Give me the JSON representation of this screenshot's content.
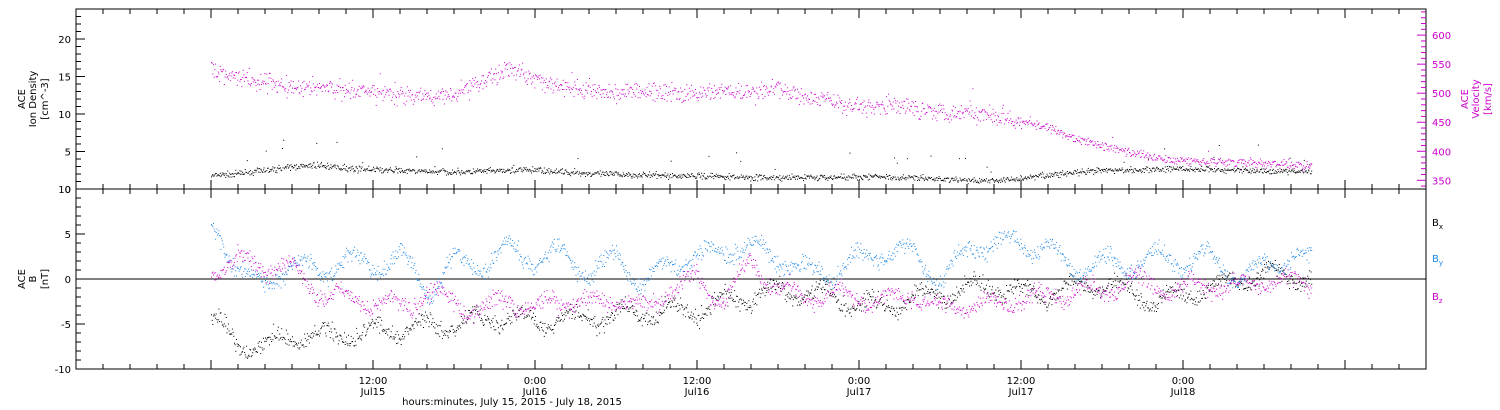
{
  "chart_data": [
    {
      "type": "scatter",
      "panel": "plasma",
      "left_axis_label": [
        "ACE",
        "Ion Density",
        "[cm^-3]"
      ],
      "right_axis_label": [
        "ACE",
        "Velocity",
        "[km/s]"
      ],
      "left_ylim": [
        0,
        24
      ],
      "right_ylim": [
        335,
        645
      ],
      "left_yticks": [
        0,
        5,
        10,
        15,
        20
      ],
      "right_yticks": [
        350,
        400,
        450,
        500,
        550,
        600
      ],
      "colors": {
        "density": "#000000",
        "velocity": "#cc00cc"
      },
      "series": [
        {
          "name": "Ion Density",
          "axis": "left",
          "x_hours": [
            0,
            2,
            4,
            6,
            8,
            10,
            12,
            14,
            16,
            18,
            20,
            22,
            24,
            26,
            28,
            30,
            32,
            34,
            36,
            38,
            40,
            42,
            44,
            46,
            48,
            50,
            52,
            54,
            56,
            58,
            60,
            62,
            64,
            66,
            68,
            70,
            72,
            74,
            76,
            78,
            80,
            81.5
          ],
          "values": [
            1.8,
            2.1,
            2.5,
            3.0,
            3.2,
            2.8,
            2.6,
            2.5,
            2.4,
            2.3,
            2.4,
            2.5,
            2.6,
            2.3,
            2.1,
            2.0,
            1.9,
            1.8,
            1.8,
            1.7,
            1.6,
            1.5,
            1.6,
            1.6,
            1.7,
            1.7,
            1.5,
            1.4,
            1.2,
            1.1,
            1.5,
            1.9,
            2.2,
            2.5,
            2.6,
            2.7,
            2.7,
            2.6,
            2.6,
            2.5,
            2.4,
            2.3
          ]
        },
        {
          "name": "Velocity",
          "axis": "right",
          "x_hours": [
            0,
            2,
            4,
            6,
            8,
            10,
            12,
            14,
            16,
            18,
            20,
            22,
            24,
            26,
            28,
            30,
            32,
            34,
            36,
            38,
            40,
            42,
            44,
            46,
            48,
            50,
            52,
            54,
            56,
            58,
            60,
            62,
            64,
            66,
            68,
            70,
            72,
            74,
            76,
            78,
            80,
            81.5
          ],
          "values": [
            540,
            530,
            520,
            510,
            512,
            505,
            500,
            498,
            495,
            500,
            520,
            545,
            525,
            510,
            505,
            500,
            505,
            500,
            498,
            505,
            500,
            510,
            495,
            485,
            478,
            480,
            475,
            470,
            468,
            465,
            455,
            440,
            422,
            410,
            398,
            390,
            385,
            383,
            381,
            380,
            378,
            375
          ]
        }
      ]
    },
    {
      "type": "scatter",
      "panel": "magnetic-field",
      "left_axis_label": [
        "ACE",
        "B",
        "[nT]"
      ],
      "ylim": [
        -10,
        10
      ],
      "yticks": [
        -10,
        -5,
        0,
        5,
        10
      ],
      "zero_line": true,
      "legend": [
        "Bx",
        "By",
        "Bz"
      ],
      "legend_position": "right",
      "colors": {
        "Bx": "#000000",
        "By": "#1e88e5",
        "Bz": "#cc00cc"
      },
      "series": [
        {
          "name": "Bx",
          "x_hours": [
            0,
            2,
            4,
            6,
            8,
            10,
            12,
            14,
            16,
            18,
            20,
            22,
            24,
            26,
            28,
            30,
            32,
            34,
            36,
            38,
            40,
            42,
            44,
            46,
            48,
            50,
            52,
            54,
            56,
            58,
            60,
            62,
            64,
            66,
            68,
            70,
            72,
            74,
            76,
            78,
            80,
            81.5
          ],
          "values": [
            -4,
            -7.5,
            -7.2,
            -6.5,
            -6.3,
            -6.0,
            -5.8,
            -5.5,
            -5.3,
            -5.0,
            -4.5,
            -4.2,
            -4.8,
            -4.5,
            -4.2,
            -4.0,
            -3.8,
            -3.5,
            -3.5,
            -2.5,
            -2.0,
            -1.2,
            -1.5,
            -2.0,
            -2.8,
            -3.0,
            -2.0,
            -1.8,
            -1.0,
            -0.5,
            -1.5,
            -1.5,
            -1.0,
            -0.5,
            -1.5,
            -2.5,
            -1.5,
            -1.0,
            0.0,
            0.5,
            0.5,
            0.0
          ]
        },
        {
          "name": "By",
          "x_hours": [
            0,
            2,
            4,
            6,
            8,
            10,
            12,
            14,
            16,
            18,
            20,
            22,
            24,
            26,
            28,
            30,
            32,
            34,
            36,
            38,
            40,
            42,
            44,
            46,
            48,
            50,
            52,
            54,
            56,
            58,
            60,
            62,
            64,
            66,
            68,
            70,
            72,
            74,
            76,
            78,
            80,
            81.5
          ],
          "values": [
            5.5,
            1.5,
            -1.0,
            2.0,
            0.5,
            2.5,
            1.0,
            3.0,
            -1.5,
            2.0,
            1.5,
            3.5,
            2.0,
            3.0,
            0.5,
            2.5,
            -0.5,
            2.0,
            2.5,
            3.5,
            3.5,
            2.5,
            1.0,
            0.5,
            2.5,
            3.0,
            3.0,
            -0.5,
            3.5,
            4.0,
            4.0,
            3.5,
            1.0,
            2.0,
            1.5,
            2.5,
            2.0,
            2.5,
            0.0,
            1.5,
            2.5,
            2.0
          ]
        },
        {
          "name": "Bz",
          "x_hours": [
            0,
            2,
            4,
            6,
            8,
            10,
            12,
            14,
            16,
            18,
            20,
            22,
            24,
            26,
            28,
            30,
            32,
            34,
            36,
            38,
            40,
            42,
            44,
            46,
            48,
            50,
            52,
            54,
            56,
            58,
            60,
            62,
            64,
            66,
            68,
            70,
            72,
            74,
            76,
            78,
            80,
            81.5
          ],
          "values": [
            1.0,
            2.0,
            1.5,
            1.0,
            -1.5,
            -2.0,
            -2.5,
            -3.0,
            -1.5,
            -2.5,
            -3.5,
            -2.0,
            -3.5,
            -2.0,
            -3.0,
            -2.0,
            -3.5,
            -1.0,
            0.0,
            -2.5,
            2.0,
            -1.0,
            -2.0,
            -1.5,
            -2.0,
            -2.5,
            -1.5,
            -3.5,
            -2.5,
            -3.0,
            -2.0,
            -2.0,
            -1.0,
            -1.5,
            0.0,
            -1.0,
            -1.0,
            -0.5,
            -1.0,
            0.0,
            -0.5,
            -0.5
          ]
        }
      ]
    }
  ],
  "x_axis": {
    "range_hours": [
      -10,
      90
    ],
    "ticks": [
      {
        "hour": 12,
        "label": "12:00",
        "sublabel": "Jul15"
      },
      {
        "hour": 24,
        "label": "0:00",
        "sublabel": "Jul16"
      },
      {
        "hour": 36,
        "label": "12:00",
        "sublabel": "Jul16"
      },
      {
        "hour": 48,
        "label": "0:00",
        "sublabel": "Jul17"
      },
      {
        "hour": 60,
        "label": "12:00",
        "sublabel": "Jul17"
      },
      {
        "hour": 72,
        "label": "0:00",
        "sublabel": "Jul18"
      }
    ],
    "xlabel": "hours:minutes, July 15, 2015 - July 18, 2015"
  }
}
